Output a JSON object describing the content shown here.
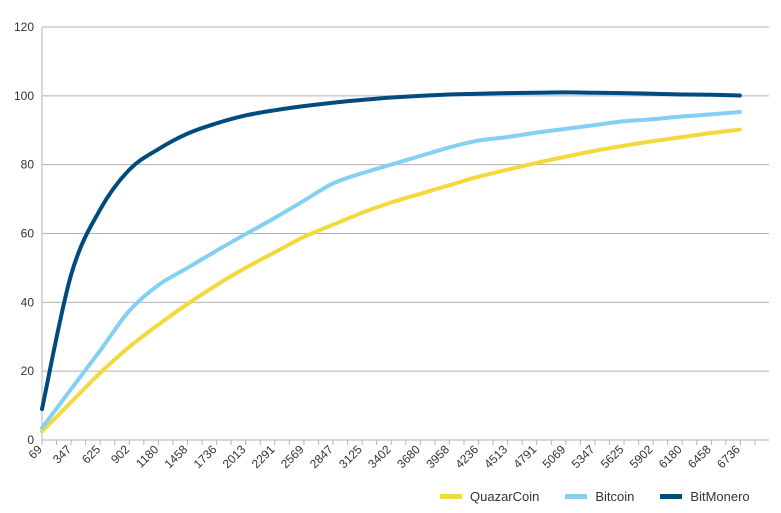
{
  "chart_data": {
    "type": "line",
    "title": "",
    "xlabel": "",
    "ylabel": "",
    "x": [
      69,
      347,
      625,
      902,
      1180,
      1458,
      1736,
      2013,
      2291,
      2569,
      2847,
      3125,
      3402,
      3680,
      3958,
      4236,
      4513,
      4791,
      5069,
      5347,
      5625,
      5902,
      6180,
      6458,
      6736
    ],
    "xlim": [
      69,
      7014
    ],
    "ylim": [
      0,
      120
    ],
    "yticks": [
      0,
      20,
      40,
      60,
      80,
      100,
      120
    ],
    "grid": true,
    "legend_position": "bottom-right",
    "series": [
      {
        "name": "QuazarCoin",
        "color": "#f4d93c",
        "values": [
          2.5,
          11,
          19.5,
          27,
          33.5,
          39.5,
          45,
          50,
          54.5,
          59,
          62.5,
          66,
          69,
          71.5,
          74,
          76.5,
          78.5,
          80.5,
          82.3,
          84,
          85.5,
          86.8,
          88,
          89.2,
          90.2
        ]
      },
      {
        "name": "Bitcoin",
        "color": "#84d0f5",
        "values": [
          3.5,
          14.8,
          26,
          37.5,
          45,
          50,
          55,
          59.8,
          64.5,
          69.5,
          74.5,
          77.5,
          80,
          82.5,
          85,
          87,
          88,
          89.3,
          90.4,
          91.5,
          92.6,
          93.2,
          94,
          94.6,
          95.3
        ]
      },
      {
        "name": "BitMonero",
        "color": "#004b7d",
        "values": [
          9,
          48,
          67,
          78.5,
          84.5,
          89,
          92,
          94.3,
          95.8,
          97,
          98,
          98.8,
          99.5,
          100,
          100.4,
          100.6,
          100.8,
          100.9,
          101,
          100.9,
          100.8,
          100.6,
          100.4,
          100.3,
          100.1
        ]
      }
    ]
  }
}
